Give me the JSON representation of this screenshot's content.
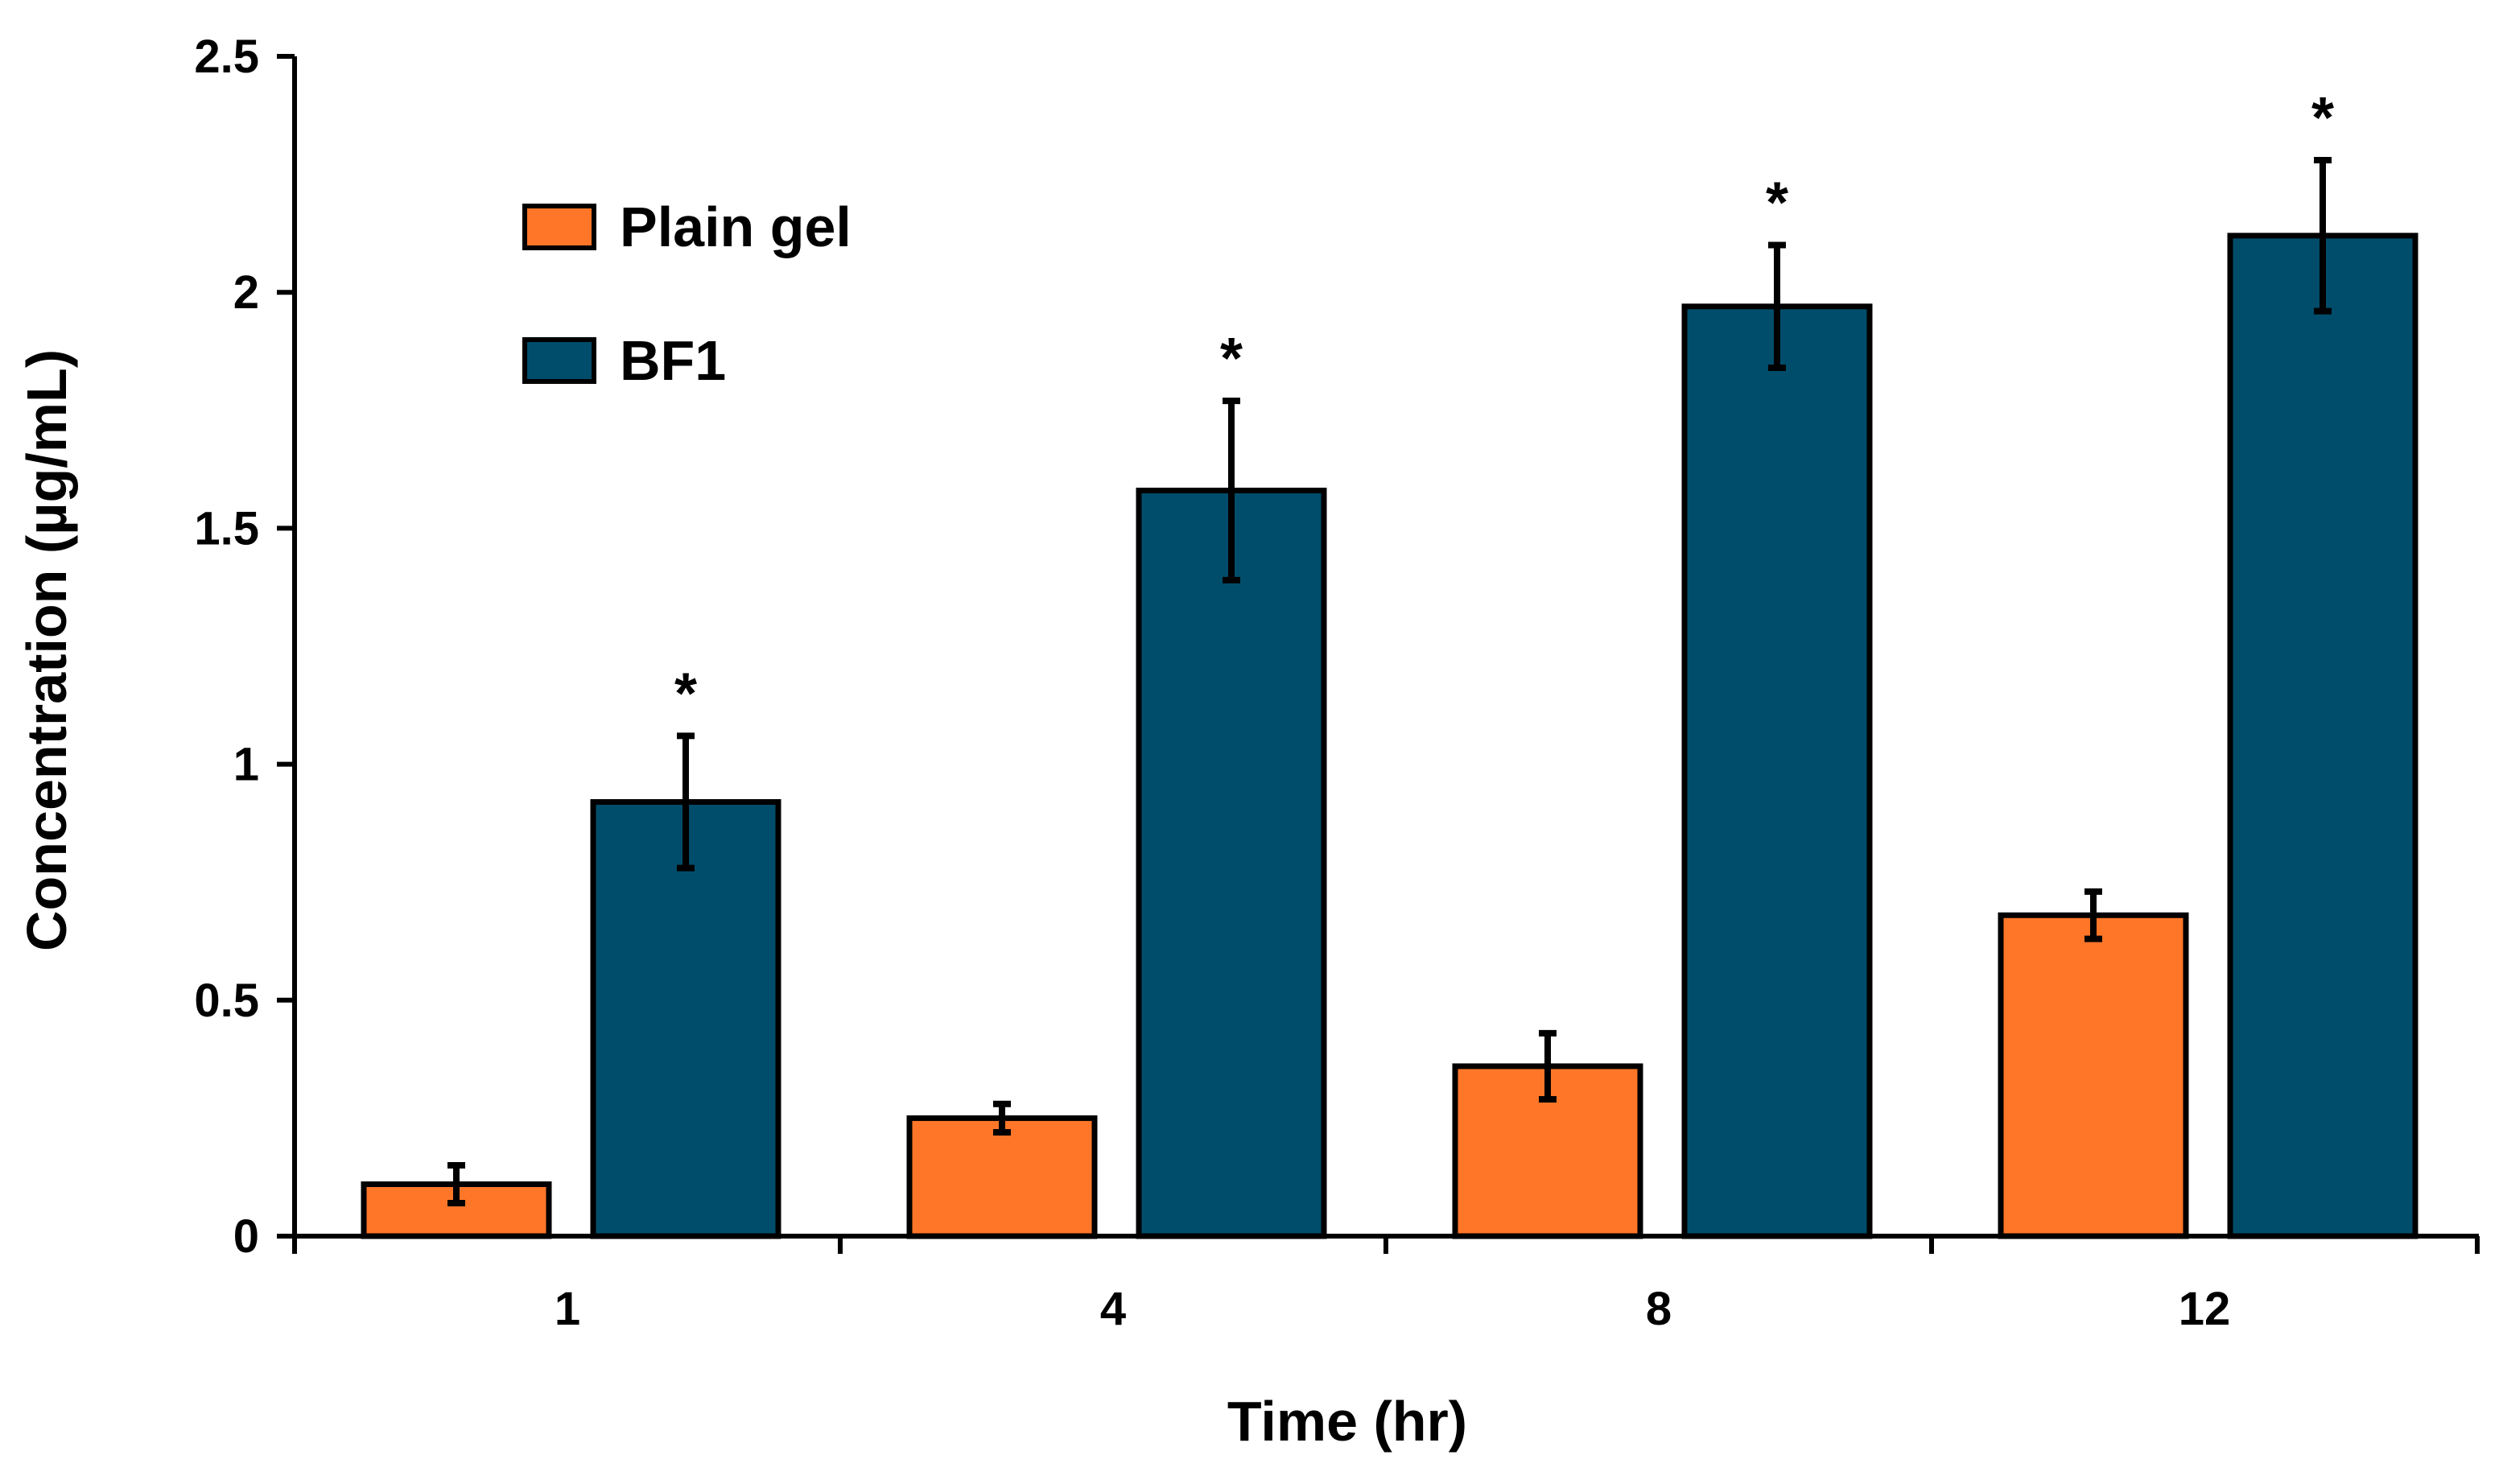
{
  "chart_data": {
    "type": "bar",
    "title": "",
    "xlabel": "Time (hr)",
    "ylabel": "Concentration (µg/mL)",
    "categories": [
      "1",
      "4",
      "8",
      "12"
    ],
    "ylim": [
      0,
      2.5
    ],
    "yticks": [
      "0",
      "0.5",
      "1",
      "1.5",
      "2",
      "2.5"
    ],
    "ytick_values": [
      0,
      0.5,
      1,
      1.5,
      2,
      2.5
    ],
    "grid": false,
    "legend_position": "top-left",
    "series": [
      {
        "name": "Plain gel",
        "color": "#ff7629",
        "values": [
          0.11,
          0.25,
          0.36,
          0.68
        ],
        "errors": [
          0.04,
          0.03,
          0.07,
          0.05
        ]
      },
      {
        "name": "BF1",
        "color": "#004d6b",
        "values": [
          0.92,
          1.58,
          1.97,
          2.12
        ],
        "errors": [
          0.14,
          0.19,
          0.13,
          0.16
        ]
      }
    ],
    "annotations": [
      "*",
      "*",
      "*",
      "*"
    ]
  }
}
